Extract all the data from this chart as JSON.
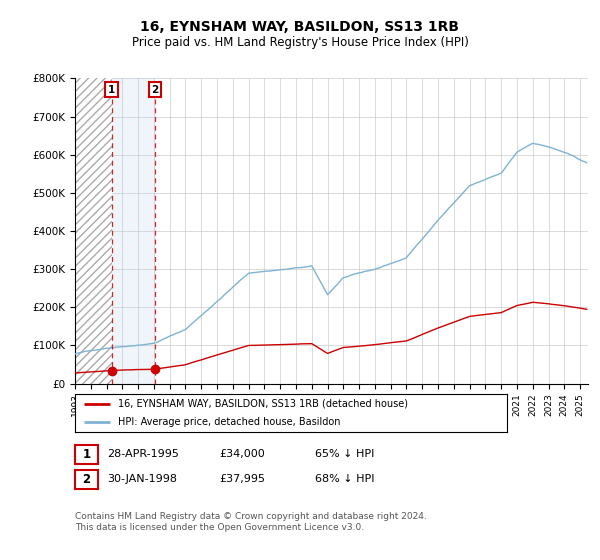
{
  "title": "16, EYNSHAM WAY, BASILDON, SS13 1RB",
  "subtitle": "Price paid vs. HM Land Registry's House Price Index (HPI)",
  "ytick_labels": [
    "£0",
    "£100K",
    "£200K",
    "£300K",
    "£400K",
    "£500K",
    "£600K",
    "£700K",
    "£800K"
  ],
  "yticks": [
    0,
    100000,
    200000,
    300000,
    400000,
    500000,
    600000,
    700000,
    800000
  ],
  "purchase1_date": 1995.32,
  "purchase1_price": 34000,
  "purchase2_date": 1998.08,
  "purchase2_price": 37995,
  "legend_line1": "16, EYNSHAM WAY, BASILDON, SS13 1RB (detached house)",
  "legend_line2": "HPI: Average price, detached house, Basildon",
  "note1_text": "28-APR-1995",
  "note1_price": "£34,000",
  "note1_hpi": "65% ↓ HPI",
  "note2_text": "30-JAN-1998",
  "note2_price": "£37,995",
  "note2_hpi": "68% ↓ HPI",
  "footer": "Contains HM Land Registry data © Crown copyright and database right 2024.\nThis data is licensed under the Open Government Licence v3.0.",
  "red_color": "#cc0000",
  "blue_color": "#7fb3d3",
  "hatch_color": "#bbbbbb",
  "shade_color": "#ddeeff",
  "grid_color": "#cccccc",
  "xstart": 1993.0,
  "xend": 2025.5
}
